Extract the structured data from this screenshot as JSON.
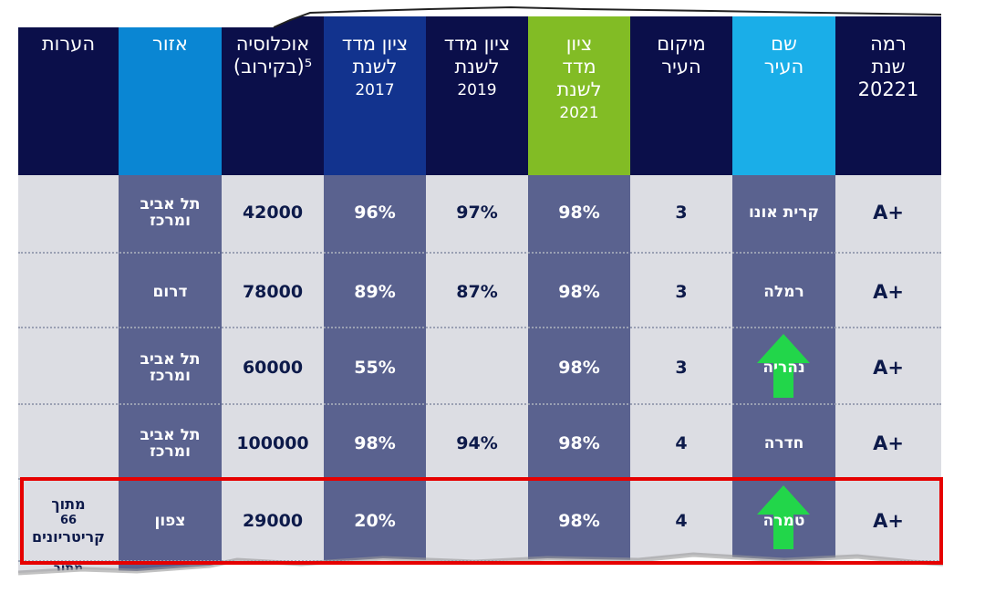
{
  "table": {
    "headers": {
      "level": {
        "lines": [
          "רמה",
          "שנת",
          "20221"
        ]
      },
      "city": {
        "lines": [
          "שם",
          "העיר"
        ]
      },
      "rank": {
        "lines": [
          "מיקום",
          "העיר"
        ]
      },
      "score2021": {
        "lines": [
          "ציון",
          "מדד",
          "לשנת"
        ],
        "year": "2021"
      },
      "score2019": {
        "lines": [
          "ציון מדד",
          "לשנת"
        ],
        "year": "2019"
      },
      "score2017": {
        "lines": [
          "ציון מדד",
          "לשנת"
        ],
        "year": "2017"
      },
      "population": {
        "lines": [
          "אוכלוסיה",
          "(בקירוב)⁵"
        ]
      },
      "region": {
        "lines": [
          "אזור"
        ]
      },
      "notes": {
        "lines": [
          "הערות"
        ]
      }
    },
    "rows": [
      {
        "level": "A+",
        "city": "קרית אונו",
        "rank": "3",
        "score2021": "98%",
        "score2019": "97%",
        "score2017": "96%",
        "population": "42000",
        "region": [
          "תל אביב",
          "ומרכז"
        ],
        "notes": [],
        "arrow": false
      },
      {
        "level": "A+",
        "city": "רמלה",
        "rank": "3",
        "score2021": "98%",
        "score2019": "87%",
        "score2017": "89%",
        "population": "78000",
        "region": [
          "דרום"
        ],
        "notes": [],
        "arrow": false
      },
      {
        "level": "A+",
        "city": "נהריה",
        "rank": "3",
        "score2021": "98%",
        "score2019": "",
        "score2017": "55%",
        "population": "60000",
        "region": [
          "תל אביב",
          "ומרכז"
        ],
        "notes": [],
        "arrow": true
      },
      {
        "level": "A+",
        "city": "חדרה",
        "rank": "4",
        "score2021": "98%",
        "score2019": "94%",
        "score2017": "98%",
        "population": "100000",
        "region": [
          "תל אביב",
          "ומרכז"
        ],
        "notes": [],
        "arrow": false
      },
      {
        "level": "A+",
        "city": "טמרה",
        "rank": "4",
        "score2021": "98%",
        "score2019": "",
        "score2017": "20%",
        "population": "29000",
        "region": [
          "צפון"
        ],
        "notes": [
          "מתוך",
          "66",
          "קריטריונים"
        ],
        "arrow": true
      }
    ],
    "partial_row_text": "מתוך"
  },
  "colors": {
    "dark_navy": "#0b0f4a",
    "header_blue": "#0a86d3",
    "header_light_blue": "#1aaee8",
    "header_royal": "#12338e",
    "header_green": "#82bc25",
    "body_slate": "#5a628f",
    "body_light": "#dcdde3",
    "highlight_red": "#e60000",
    "arrow_green": "#22d64a"
  }
}
